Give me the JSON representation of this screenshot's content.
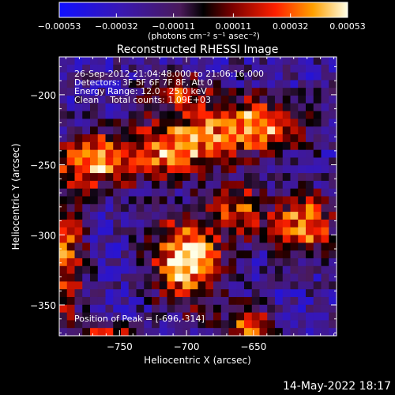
{
  "chart_data": {
    "type": "heatmap",
    "title": "Reconstructed RHESSI Image",
    "xlabel": "Heliocentric X (arcsec)",
    "ylabel": "Heliocentric Y (arcsec)",
    "xlim": [
      -795,
      -588
    ],
    "ylim": [
      -372,
      -173
    ],
    "x_ticks": [
      -750,
      -700,
      -650
    ],
    "y_ticks": [
      -200,
      -250,
      -300,
      -350
    ],
    "colorbar": {
      "range": [
        -0.00053,
        0.00053
      ],
      "ticks": [
        "-0.00053",
        "-0.00032",
        "-0.00011",
        "0.00011",
        "0.00032",
        "0.00053"
      ],
      "units_label": "(photons cm⁻² s⁻¹ asec⁻²)"
    },
    "annotations": [
      "26-Sep-2012 21:04:48.000 to 21:06:16.000",
      "Detectors: 3F 5F 6F 7F 8F, Att 0",
      "Energy Range: 12.0 - 25.0 keV",
      "Clean    Total counts: 1.09E+03"
    ],
    "peak_label": "Position of Peak = [-696,-314]",
    "peak": [
      -696,
      -314
    ],
    "grid_cols": 36,
    "grid_rows": 36,
    "hotspots": [
      {
        "x": -700,
        "y": -318,
        "sx": 18,
        "sy": 22,
        "a": 1.0
      },
      {
        "x": -768,
        "y": -247,
        "sx": 22,
        "sy": 14,
        "a": 0.85
      },
      {
        "x": -708,
        "y": -238,
        "sx": 24,
        "sy": 14,
        "a": 0.8
      },
      {
        "x": -650,
        "y": -222,
        "sx": 28,
        "sy": 14,
        "a": 0.85
      },
      {
        "x": -612,
        "y": -292,
        "sx": 16,
        "sy": 16,
        "a": 0.8
      },
      {
        "x": -660,
        "y": -282,
        "sx": 14,
        "sy": 14,
        "a": 0.6
      },
      {
        "x": -790,
        "y": -318,
        "sx": 10,
        "sy": 30,
        "a": 0.7
      },
      {
        "x": -653,
        "y": -365,
        "sx": 14,
        "sy": 10,
        "a": 0.65
      },
      {
        "x": -760,
        "y": -372,
        "sx": 16,
        "sy": 8,
        "a": 0.55
      },
      {
        "x": -708,
        "y": -198,
        "sx": 20,
        "sy": 10,
        "a": 0.55
      }
    ],
    "noise_amp": 0.25
  },
  "footer": {
    "timestamp": "14-May-2022 18:17"
  },
  "colors": {
    "background": "#000000",
    "foreground": "#ffffff"
  }
}
